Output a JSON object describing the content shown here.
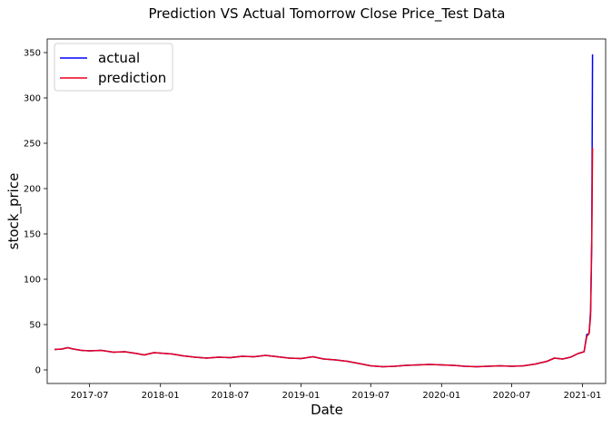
{
  "chart_data": {
    "type": "line",
    "title": "Prediction VS Actual Tomorrow Close Price_Test Data",
    "xlabel": "Date",
    "ylabel": "stock_price",
    "xlim": [
      "2017-03-13",
      "2021-03-02"
    ],
    "ylim": [
      -15,
      365
    ],
    "x_ticks": [
      "2017-07",
      "2018-01",
      "2018-07",
      "2019-01",
      "2019-07",
      "2020-01",
      "2020-07",
      "2021-01"
    ],
    "y_ticks": [
      0,
      50,
      100,
      150,
      200,
      250,
      300,
      350
    ],
    "grid": false,
    "legend_position": "top-left",
    "series": [
      {
        "name": "actual",
        "color": "#0000ff",
        "points": [
          [
            "2017-04-01",
            22.5
          ],
          [
            "2017-04-20",
            23.0
          ],
          [
            "2017-05-05",
            24.5
          ],
          [
            "2017-05-20",
            23.0
          ],
          [
            "2017-06-10",
            21.5
          ],
          [
            "2017-07-01",
            21.0
          ],
          [
            "2017-08-01",
            21.5
          ],
          [
            "2017-09-01",
            19.5
          ],
          [
            "2017-10-01",
            20.0
          ],
          [
            "2017-11-01",
            18.0
          ],
          [
            "2017-11-20",
            16.5
          ],
          [
            "2017-12-15",
            19.0
          ],
          [
            "2018-01-01",
            18.5
          ],
          [
            "2018-02-01",
            17.5
          ],
          [
            "2018-03-01",
            15.5
          ],
          [
            "2018-04-01",
            14.0
          ],
          [
            "2018-05-01",
            13.0
          ],
          [
            "2018-06-01",
            14.0
          ],
          [
            "2018-07-01",
            13.5
          ],
          [
            "2018-08-01",
            15.0
          ],
          [
            "2018-09-01",
            14.5
          ],
          [
            "2018-10-01",
            16.0
          ],
          [
            "2018-11-01",
            14.5
          ],
          [
            "2018-12-01",
            13.0
          ],
          [
            "2019-01-01",
            12.5
          ],
          [
            "2019-02-01",
            14.5
          ],
          [
            "2019-03-01",
            12.0
          ],
          [
            "2019-04-01",
            11.0
          ],
          [
            "2019-05-01",
            9.5
          ],
          [
            "2019-06-01",
            7.0
          ],
          [
            "2019-07-01",
            4.5
          ],
          [
            "2019-08-01",
            3.5
          ],
          [
            "2019-09-01",
            4.0
          ],
          [
            "2019-10-01",
            5.0
          ],
          [
            "2019-11-01",
            5.5
          ],
          [
            "2019-12-01",
            6.0
          ],
          [
            "2020-01-01",
            5.5
          ],
          [
            "2020-02-01",
            5.0
          ],
          [
            "2020-03-01",
            4.0
          ],
          [
            "2020-04-01",
            3.5
          ],
          [
            "2020-05-01",
            4.0
          ],
          [
            "2020-06-01",
            4.5
          ],
          [
            "2020-07-01",
            4.0
          ],
          [
            "2020-08-01",
            4.5
          ],
          [
            "2020-09-01",
            6.5
          ],
          [
            "2020-10-01",
            9.5
          ],
          [
            "2020-10-20",
            13.0
          ],
          [
            "2020-11-10",
            12.0
          ],
          [
            "2020-12-01",
            14.0
          ],
          [
            "2020-12-20",
            18.0
          ],
          [
            "2021-01-05",
            20.0
          ],
          [
            "2021-01-12",
            39.0
          ],
          [
            "2021-01-18",
            40.0
          ],
          [
            "2021-01-22",
            65.0
          ],
          [
            "2021-01-25",
            147.0
          ],
          [
            "2021-01-27",
            348.0
          ]
        ]
      },
      {
        "name": "prediction",
        "color": "#e8001c",
        "points": [
          [
            "2017-04-01",
            22.5
          ],
          [
            "2017-04-20",
            23.0
          ],
          [
            "2017-05-05",
            24.5
          ],
          [
            "2017-05-20",
            23.0
          ],
          [
            "2017-06-10",
            21.5
          ],
          [
            "2017-07-01",
            21.0
          ],
          [
            "2017-08-01",
            21.5
          ],
          [
            "2017-09-01",
            19.5
          ],
          [
            "2017-10-01",
            20.0
          ],
          [
            "2017-11-01",
            18.0
          ],
          [
            "2017-11-20",
            16.5
          ],
          [
            "2017-12-15",
            19.0
          ],
          [
            "2018-01-01",
            18.5
          ],
          [
            "2018-02-01",
            17.5
          ],
          [
            "2018-03-01",
            15.5
          ],
          [
            "2018-04-01",
            14.0
          ],
          [
            "2018-05-01",
            13.0
          ],
          [
            "2018-06-01",
            14.0
          ],
          [
            "2018-07-01",
            13.5
          ],
          [
            "2018-08-01",
            15.0
          ],
          [
            "2018-09-01",
            14.5
          ],
          [
            "2018-10-01",
            16.0
          ],
          [
            "2018-11-01",
            14.5
          ],
          [
            "2018-12-01",
            13.0
          ],
          [
            "2019-01-01",
            12.5
          ],
          [
            "2019-02-01",
            14.5
          ],
          [
            "2019-03-01",
            12.0
          ],
          [
            "2019-04-01",
            11.0
          ],
          [
            "2019-05-01",
            9.5
          ],
          [
            "2019-06-01",
            7.0
          ],
          [
            "2019-07-01",
            4.5
          ],
          [
            "2019-08-01",
            3.5
          ],
          [
            "2019-09-01",
            4.0
          ],
          [
            "2019-10-01",
            5.0
          ],
          [
            "2019-11-01",
            5.5
          ],
          [
            "2019-12-01",
            6.0
          ],
          [
            "2020-01-01",
            5.5
          ],
          [
            "2020-02-01",
            5.0
          ],
          [
            "2020-03-01",
            4.0
          ],
          [
            "2020-04-01",
            3.5
          ],
          [
            "2020-05-01",
            4.0
          ],
          [
            "2020-06-01",
            4.5
          ],
          [
            "2020-07-01",
            4.0
          ],
          [
            "2020-08-01",
            4.5
          ],
          [
            "2020-09-01",
            6.5
          ],
          [
            "2020-10-01",
            9.5
          ],
          [
            "2020-10-20",
            13.0
          ],
          [
            "2020-11-10",
            12.0
          ],
          [
            "2020-12-01",
            14.0
          ],
          [
            "2020-12-20",
            18.0
          ],
          [
            "2021-01-05",
            20.0
          ],
          [
            "2021-01-12",
            37.0
          ],
          [
            "2021-01-18",
            40.0
          ],
          [
            "2021-01-22",
            60.0
          ],
          [
            "2021-01-25",
            140.0
          ],
          [
            "2021-01-27",
            245.0
          ]
        ]
      }
    ]
  }
}
